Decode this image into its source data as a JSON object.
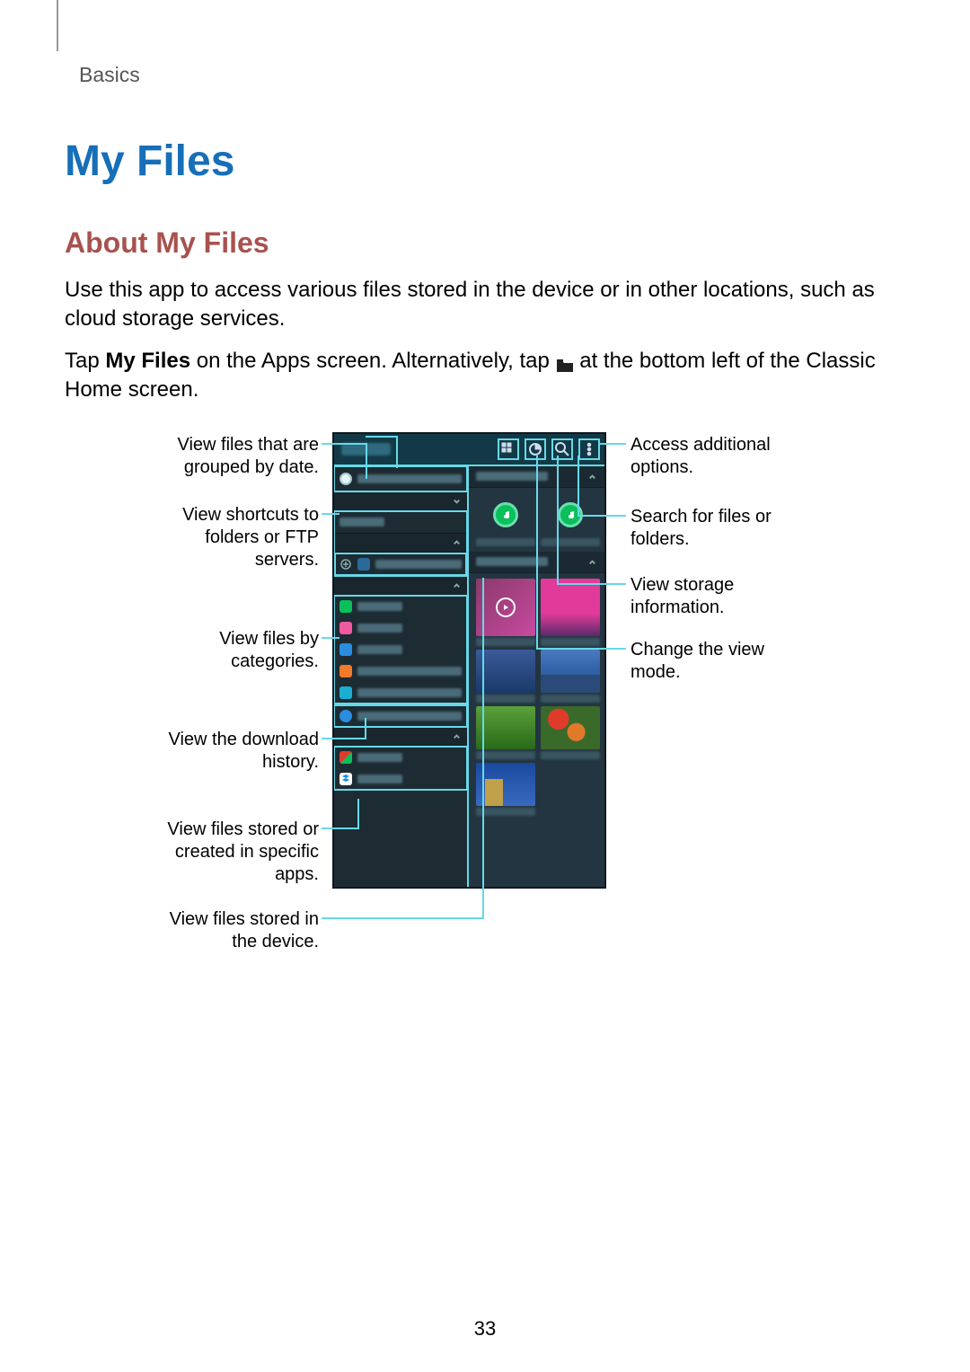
{
  "chapter": "Basics",
  "page_number": "33",
  "h1": "My Files",
  "h2": "About My Files",
  "para1": "Use this app to access various files stored in the device or in other locations, such as cloud storage services.",
  "para2_a": "Tap ",
  "para2_b": "My Files",
  "para2_c": " on the Apps screen. Alternatively, tap ",
  "para2_d": " at the bottom left of the Classic Home screen.",
  "callouts": {
    "left": [
      "View files that are\ngrouped by date.",
      "View shortcuts to\nfolders or FTP\nservers.",
      "View files by\ncategories.",
      "View the download\nhistory.",
      "View files stored or\ncreated in specific\napps.",
      "View files stored in\nthe device."
    ],
    "right": [
      "Access additional\noptions.",
      "Search for files or\nfolders.",
      "View storage\ninformation.",
      "Change the view\nmode."
    ]
  },
  "styling": {
    "accent_blue": "#166fb8",
    "accent_red": "#a7524f",
    "cyan": "#66d9e8",
    "phone_bg": "#1d2b33",
    "phone_header": "#123945",
    "body_fontsize": 24,
    "callout_fontsize": 20,
    "h1_fontsize": 48,
    "h2_fontsize": 32,
    "category_colors": {
      "images": "#0bbf5a",
      "videos": "#ef5aa0",
      "audio": "#2a8de0",
      "documents": "#f07b2a",
      "apps": "#1aaed0",
      "download": "#2a8de0",
      "office": "#e03a2a",
      "dropbox": "#ffffff"
    },
    "thumb_colors": [
      [
        "#8a3a6a",
        "#a04a87",
        "#e23a9a"
      ],
      [
        "#6a3aa0",
        "#1a4a8a",
        "#2a4a7a"
      ],
      [
        "#3a913a",
        "#3a913a",
        "#e07a2a"
      ],
      [
        "#1a4aa0"
      ]
    ]
  }
}
